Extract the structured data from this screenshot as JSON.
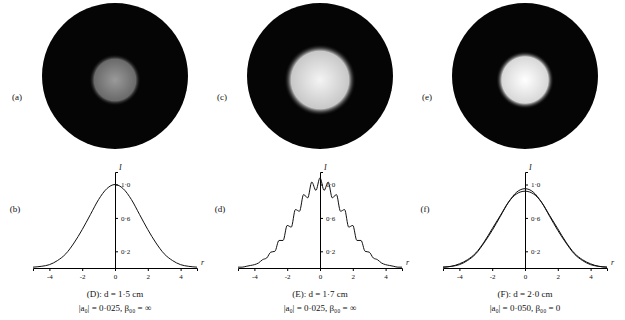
{
  "images": [
    {
      "label": "(a)"
    },
    {
      "label": "(c)"
    },
    {
      "label": "(e)"
    }
  ],
  "chart_data": [
    {
      "type": "line",
      "title": "(D): d = 1·5 cm",
      "subtitle": "|a₀| = 0·025, β₀₀ = ∞",
      "annotations": [
        "(b)"
      ],
      "xlabel": "r",
      "ylabel": "I",
      "x": [
        -5,
        -4.5,
        -4,
        -3.5,
        -3,
        -2.5,
        -2,
        -1.5,
        -1,
        -0.5,
        0,
        0.5,
        1,
        1.5,
        2,
        2.5,
        3,
        3.5,
        4,
        4.5,
        5
      ],
      "series": [
        {
          "color": "#111111",
          "values": [
            0.01,
            0.02,
            0.04,
            0.09,
            0.17,
            0.3,
            0.46,
            0.64,
            0.82,
            0.95,
            1.0,
            0.95,
            0.82,
            0.64,
            0.46,
            0.3,
            0.17,
            0.09,
            0.04,
            0.02,
            0.01
          ]
        }
      ],
      "xlim": [
        -5,
        5
      ],
      "ylim": [
        0,
        1.15
      ],
      "xticks": [
        -4,
        -2,
        0,
        2,
        4
      ],
      "yticks": [
        {
          "value": 0.2,
          "label": "0·2"
        },
        {
          "value": 0.6,
          "label": "0·6"
        },
        {
          "value": 1,
          "label": "1·0"
        }
      ]
    },
    {
      "type": "line",
      "title": "(E): d = 1·7 cm",
      "subtitle": "|a₀| = 0·025, β₀₀ = ∞",
      "annotations": [
        "(d)"
      ],
      "xlabel": "r",
      "ylabel": "I",
      "x": [
        -5,
        -4.75,
        -4.5,
        -4.25,
        -4,
        -3.75,
        -3.5,
        -3.25,
        -3,
        -2.75,
        -2.5,
        -2.25,
        -2,
        -1.75,
        -1.5,
        -1.25,
        -1,
        -0.75,
        -0.5,
        -0.25,
        0,
        0.25,
        0.5,
        0.75,
        1,
        1.25,
        1.5,
        1.75,
        2,
        2.25,
        2.5,
        2.75,
        3,
        3.25,
        3.5,
        3.75,
        4,
        4.25,
        4.5,
        4.75,
        5
      ],
      "series": [
        {
          "color": "#111111",
          "values": [
            0.01,
            0.01,
            0.02,
            0.03,
            0.04,
            0.06,
            0.1,
            0.12,
            0.19,
            0.2,
            0.33,
            0.33,
            0.51,
            0.49,
            0.7,
            0.68,
            0.88,
            0.84,
            1.03,
            0.93,
            1.08,
            0.93,
            1.03,
            0.84,
            0.88,
            0.68,
            0.7,
            0.49,
            0.51,
            0.33,
            0.33,
            0.2,
            0.19,
            0.12,
            0.1,
            0.06,
            0.04,
            0.03,
            0.02,
            0.01,
            0.01
          ]
        }
      ],
      "xlim": [
        -5,
        5
      ],
      "ylim": [
        0,
        1.15
      ],
      "xticks": [
        -4,
        -2,
        0,
        2,
        4
      ],
      "yticks": [
        {
          "value": 0.2,
          "label": "0·2"
        },
        {
          "value": 0.6,
          "label": "0·6"
        },
        {
          "value": 1,
          "label": "1·0"
        }
      ]
    },
    {
      "type": "line",
      "title": "(F): d = 2·0 cm",
      "subtitle": "|a₀| = 0·050, β₀₀ = 0",
      "annotations": [
        "(f)"
      ],
      "xlabel": "r",
      "ylabel": "I",
      "x": [
        -5,
        -4.5,
        -4,
        -3.5,
        -3,
        -2.5,
        -2,
        -1.5,
        -1,
        -0.5,
        0,
        0.5,
        1,
        1.5,
        2,
        2.5,
        3,
        3.5,
        4,
        4.5,
        5
      ],
      "series": [
        {
          "color": "#111111",
          "values": [
            0.01,
            0.02,
            0.04,
            0.09,
            0.17,
            0.3,
            0.45,
            0.62,
            0.79,
            0.91,
            0.95,
            0.91,
            0.79,
            0.62,
            0.45,
            0.3,
            0.17,
            0.09,
            0.04,
            0.02,
            0.01
          ]
        },
        {
          "color": "#111111",
          "values": [
            0.01,
            0.02,
            0.05,
            0.1,
            0.18,
            0.31,
            0.47,
            0.63,
            0.79,
            0.89,
            0.92,
            0.89,
            0.79,
            0.63,
            0.47,
            0.31,
            0.18,
            0.1,
            0.05,
            0.02,
            0.01
          ]
        }
      ],
      "xlim": [
        -5,
        5
      ],
      "ylim": [
        0,
        1.15
      ],
      "xticks": [
        -4,
        -2,
        0,
        2,
        4
      ],
      "yticks": [
        {
          "value": 0.2,
          "label": "0·2"
        },
        {
          "value": 0.6,
          "label": "0·6"
        },
        {
          "value": 1,
          "label": "1·0"
        }
      ]
    }
  ]
}
